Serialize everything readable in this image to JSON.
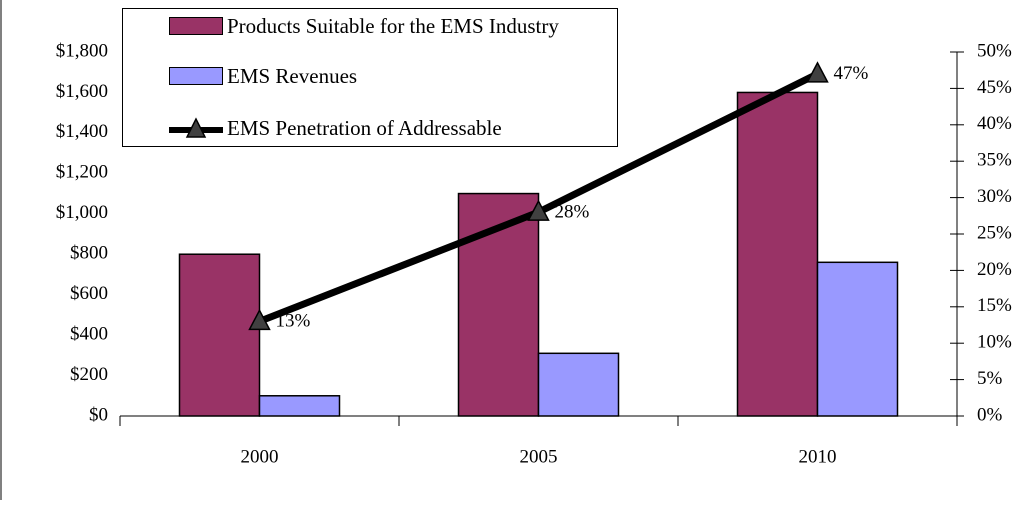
{
  "chart_data": {
    "type": "bar",
    "categories": [
      "2000",
      "2005",
      "2010"
    ],
    "series": [
      {
        "name": "Products Suitable for the EMS Industry",
        "color": "#993366",
        "values": [
          800,
          1100,
          1600
        ]
      },
      {
        "name": "EMS Revenues",
        "color": "#9999ff",
        "values": [
          100,
          310,
          760
        ]
      },
      {
        "name": "EMS Penetration of Addressable",
        "type": "line",
        "axis": "y2",
        "color": "#000000",
        "marker_color": "#404040",
        "values": [
          13,
          28,
          47
        ],
        "value_labels": [
          "13%",
          "28%",
          "47%"
        ]
      }
    ],
    "ylim": [
      0,
      1800
    ],
    "yticks": [
      {
        "value": 0,
        "label": "$0"
      },
      {
        "value": 200,
        "label": "$200"
      },
      {
        "value": 400,
        "label": "$400"
      },
      {
        "value": 600,
        "label": "$600"
      },
      {
        "value": 800,
        "label": "$800"
      },
      {
        "value": 1000,
        "label": "$1,000"
      },
      {
        "value": 1200,
        "label": "$1,200"
      },
      {
        "value": 1400,
        "label": "$1,400"
      },
      {
        "value": 1600,
        "label": "$1,600"
      },
      {
        "value": 1800,
        "label": "$1,800"
      }
    ],
    "y2lim": [
      0,
      50
    ],
    "y2ticks": [
      {
        "value": 0,
        "label": "0%"
      },
      {
        "value": 5,
        "label": "5%"
      },
      {
        "value": 10,
        "label": "10%"
      },
      {
        "value": 15,
        "label": "15%"
      },
      {
        "value": 20,
        "label": "20%"
      },
      {
        "value": 25,
        "label": "25%"
      },
      {
        "value": 30,
        "label": "30%"
      },
      {
        "value": 35,
        "label": "35%"
      },
      {
        "value": 40,
        "label": "40%"
      },
      {
        "value": 45,
        "label": "45%"
      },
      {
        "value": 50,
        "label": "50%"
      }
    ],
    "legend": "top-left"
  }
}
